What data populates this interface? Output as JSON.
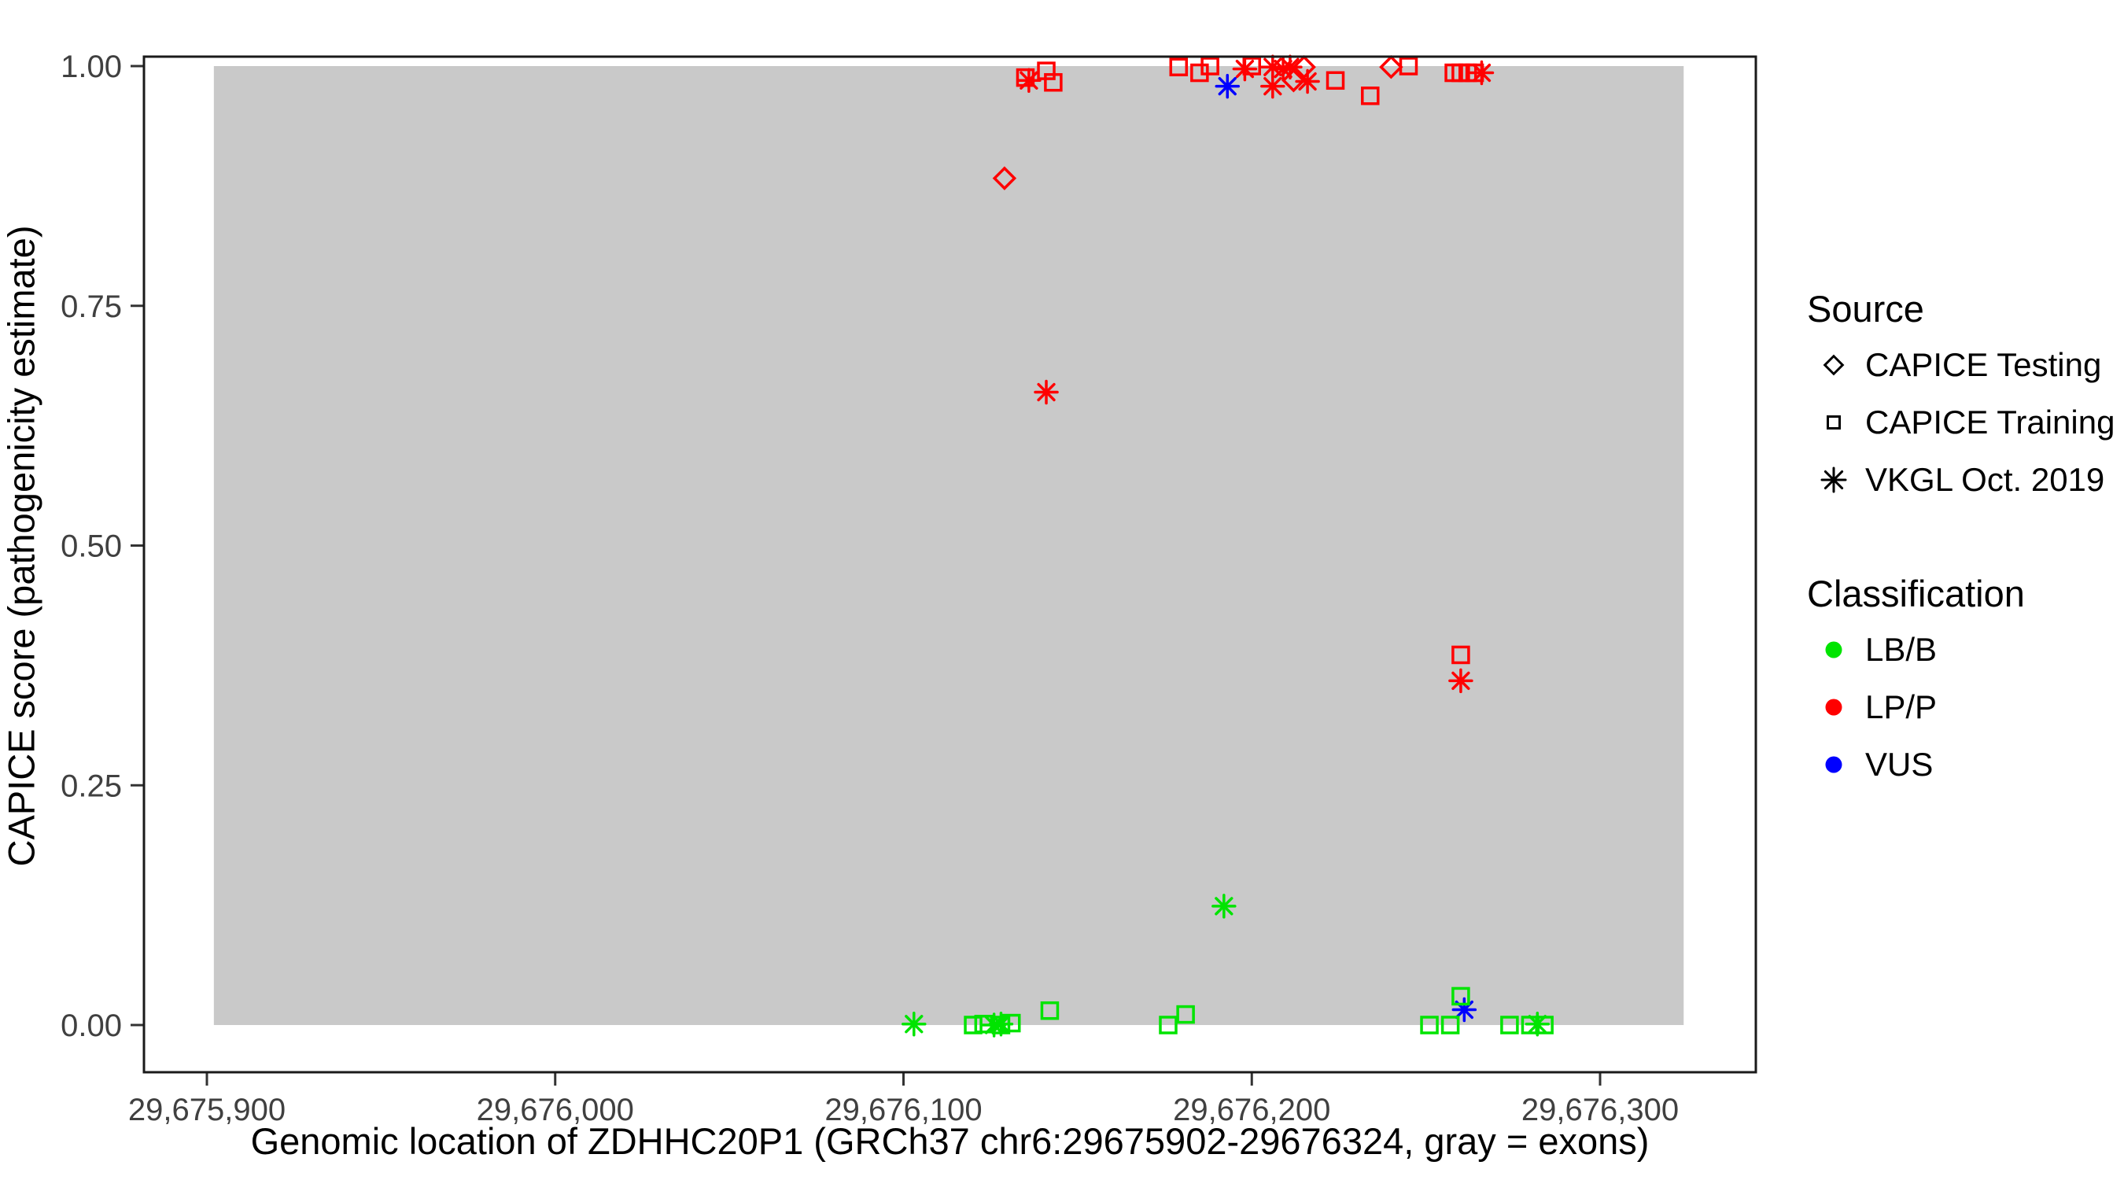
{
  "chart_data": {
    "type": "scatter",
    "title": "",
    "xlabel": "Genomic location of ZDHHC20P1 (GRCh37 chr6:29675902-29676324, gray = exons)",
    "ylabel": "CAPICE score (pathogenicity estimate)",
    "xlim": [
      29675882,
      29676345
    ],
    "ylim": [
      -0.05,
      1.01
    ],
    "grid": false,
    "legend_position": "right",
    "x_ticks": {
      "values": [
        29675900,
        29676000,
        29676100,
        29676200,
        29676300
      ],
      "labels": [
        "29,675,900",
        "29,676,000",
        "29,676,100",
        "29,676,200",
        "29,676,300"
      ]
    },
    "y_ticks": {
      "values": [
        0.0,
        0.25,
        0.5,
        0.75,
        1.0
      ],
      "labels": [
        "0.00",
        "0.25",
        "0.50",
        "0.75",
        "1.00"
      ]
    },
    "exon_region": {
      "start": 29675902,
      "end": 29676324,
      "fill": "#C9C9C9"
    },
    "classification_colors": {
      "LB/B": "#00E400",
      "LP/P": "#FF0000",
      "VUS": "#0000FF"
    },
    "source_markers": {
      "CAPICE Testing": "diamond",
      "CAPICE Training": "square",
      "VKGL Oct. 2019": "asterisk"
    },
    "points": [
      {
        "pos": 29676129,
        "score": 0.883,
        "src": "CAPICE Testing",
        "cls": "LP/P"
      },
      {
        "pos": 29676212,
        "score": 0.985,
        "src": "CAPICE Testing",
        "cls": "LP/P"
      },
      {
        "pos": 29676215,
        "score": 0.999,
        "src": "CAPICE Testing",
        "cls": "LP/P"
      },
      {
        "pos": 29676240,
        "score": 0.999,
        "src": "CAPICE Testing",
        "cls": "LP/P"
      },
      {
        "pos": 29676135,
        "score": 0.988,
        "src": "CAPICE Training",
        "cls": "LP/P"
      },
      {
        "pos": 29676141,
        "score": 0.995,
        "src": "CAPICE Training",
        "cls": "LP/P"
      },
      {
        "pos": 29676143,
        "score": 0.983,
        "src": "CAPICE Training",
        "cls": "LP/P"
      },
      {
        "pos": 29676179,
        "score": 0.999,
        "src": "CAPICE Training",
        "cls": "LP/P"
      },
      {
        "pos": 29676185,
        "score": 0.993,
        "src": "CAPICE Training",
        "cls": "LP/P"
      },
      {
        "pos": 29676188,
        "score": 1.0,
        "src": "CAPICE Training",
        "cls": "LP/P"
      },
      {
        "pos": 29676200,
        "score": 1.0,
        "src": "CAPICE Training",
        "cls": "LP/P"
      },
      {
        "pos": 29676224,
        "score": 0.985,
        "src": "CAPICE Training",
        "cls": "LP/P"
      },
      {
        "pos": 29676234,
        "score": 0.969,
        "src": "CAPICE Training",
        "cls": "LP/P"
      },
      {
        "pos": 29676245,
        "score": 1.0,
        "src": "CAPICE Training",
        "cls": "LP/P"
      },
      {
        "pos": 29676258,
        "score": 0.993,
        "src": "CAPICE Training",
        "cls": "LP/P"
      },
      {
        "pos": 29676260,
        "score": 0.993,
        "src": "CAPICE Training",
        "cls": "LP/P"
      },
      {
        "pos": 29676262,
        "score": 0.993,
        "src": "CAPICE Training",
        "cls": "LP/P"
      },
      {
        "pos": 29676264,
        "score": 0.993,
        "src": "CAPICE Training",
        "cls": "LP/P"
      },
      {
        "pos": 29676260,
        "score": 0.386,
        "src": "CAPICE Training",
        "cls": "LP/P"
      },
      {
        "pos": 29676136,
        "score": 0.985,
        "src": "VKGL Oct. 2019",
        "cls": "LP/P"
      },
      {
        "pos": 29676198,
        "score": 0.997,
        "src": "VKGL Oct. 2019",
        "cls": "LP/P"
      },
      {
        "pos": 29676206,
        "score": 0.999,
        "src": "VKGL Oct. 2019",
        "cls": "LP/P"
      },
      {
        "pos": 29676206,
        "score": 0.979,
        "src": "VKGL Oct. 2019",
        "cls": "LP/P"
      },
      {
        "pos": 29676209,
        "score": 0.997,
        "src": "VKGL Oct. 2019",
        "cls": "LP/P"
      },
      {
        "pos": 29676211,
        "score": 0.999,
        "src": "VKGL Oct. 2019",
        "cls": "LP/P"
      },
      {
        "pos": 29676216,
        "score": 0.984,
        "src": "VKGL Oct. 2019",
        "cls": "LP/P"
      },
      {
        "pos": 29676266,
        "score": 0.993,
        "src": "VKGL Oct. 2019",
        "cls": "LP/P"
      },
      {
        "pos": 29676141,
        "score": 0.66,
        "src": "VKGL Oct. 2019",
        "cls": "LP/P"
      },
      {
        "pos": 29676260,
        "score": 0.359,
        "src": "VKGL Oct. 2019",
        "cls": "LP/P"
      },
      {
        "pos": 29676193,
        "score": 0.979,
        "src": "VKGL Oct. 2019",
        "cls": "VUS"
      },
      {
        "pos": 29676261,
        "score": 0.016,
        "src": "VKGL Oct. 2019",
        "cls": "VUS"
      },
      {
        "pos": 29676192,
        "score": 0.124,
        "src": "VKGL Oct. 2019",
        "cls": "LB/B"
      },
      {
        "pos": 29676103,
        "score": 0.001,
        "src": "VKGL Oct. 2019",
        "cls": "LB/B"
      },
      {
        "pos": 29676126,
        "score": 0.0,
        "src": "VKGL Oct. 2019",
        "cls": "LB/B"
      },
      {
        "pos": 29676128,
        "score": 0.001,
        "src": "VKGL Oct. 2019",
        "cls": "LB/B"
      },
      {
        "pos": 29676282,
        "score": 0.001,
        "src": "VKGL Oct. 2019",
        "cls": "LB/B"
      },
      {
        "pos": 29676120,
        "score": 0.0,
        "src": "CAPICE Training",
        "cls": "LB/B"
      },
      {
        "pos": 29676123,
        "score": 0.001,
        "src": "CAPICE Training",
        "cls": "LB/B"
      },
      {
        "pos": 29676128,
        "score": 0.0,
        "src": "CAPICE Training",
        "cls": "LB/B"
      },
      {
        "pos": 29676131,
        "score": 0.002,
        "src": "CAPICE Training",
        "cls": "LB/B"
      },
      {
        "pos": 29676142,
        "score": 0.015,
        "src": "CAPICE Training",
        "cls": "LB/B"
      },
      {
        "pos": 29676176,
        "score": 0.0,
        "src": "CAPICE Training",
        "cls": "LB/B"
      },
      {
        "pos": 29676181,
        "score": 0.011,
        "src": "CAPICE Training",
        "cls": "LB/B"
      },
      {
        "pos": 29676251,
        "score": 0.0,
        "src": "CAPICE Training",
        "cls": "LB/B"
      },
      {
        "pos": 29676257,
        "score": 0.0,
        "src": "CAPICE Training",
        "cls": "LB/B"
      },
      {
        "pos": 29676260,
        "score": 0.03,
        "src": "CAPICE Training",
        "cls": "LB/B"
      },
      {
        "pos": 29676274,
        "score": 0.0,
        "src": "CAPICE Training",
        "cls": "LB/B"
      },
      {
        "pos": 29676280,
        "score": 0.0,
        "src": "CAPICE Training",
        "cls": "LB/B"
      },
      {
        "pos": 29676284,
        "score": 0.0,
        "src": "CAPICE Training",
        "cls": "LB/B"
      }
    ]
  },
  "legend": {
    "source": {
      "title": "Source",
      "items": [
        {
          "label": "CAPICE Testing",
          "marker": "diamond"
        },
        {
          "label": "CAPICE Training",
          "marker": "square"
        },
        {
          "label": "VKGL Oct. 2019",
          "marker": "asterisk"
        }
      ]
    },
    "classification": {
      "title": "Classification",
      "items": [
        {
          "label": "LB/B",
          "color": "#00E400"
        },
        {
          "label": "LP/P",
          "color": "#FF0000"
        },
        {
          "label": "VUS",
          "color": "#0000FF"
        }
      ]
    }
  }
}
